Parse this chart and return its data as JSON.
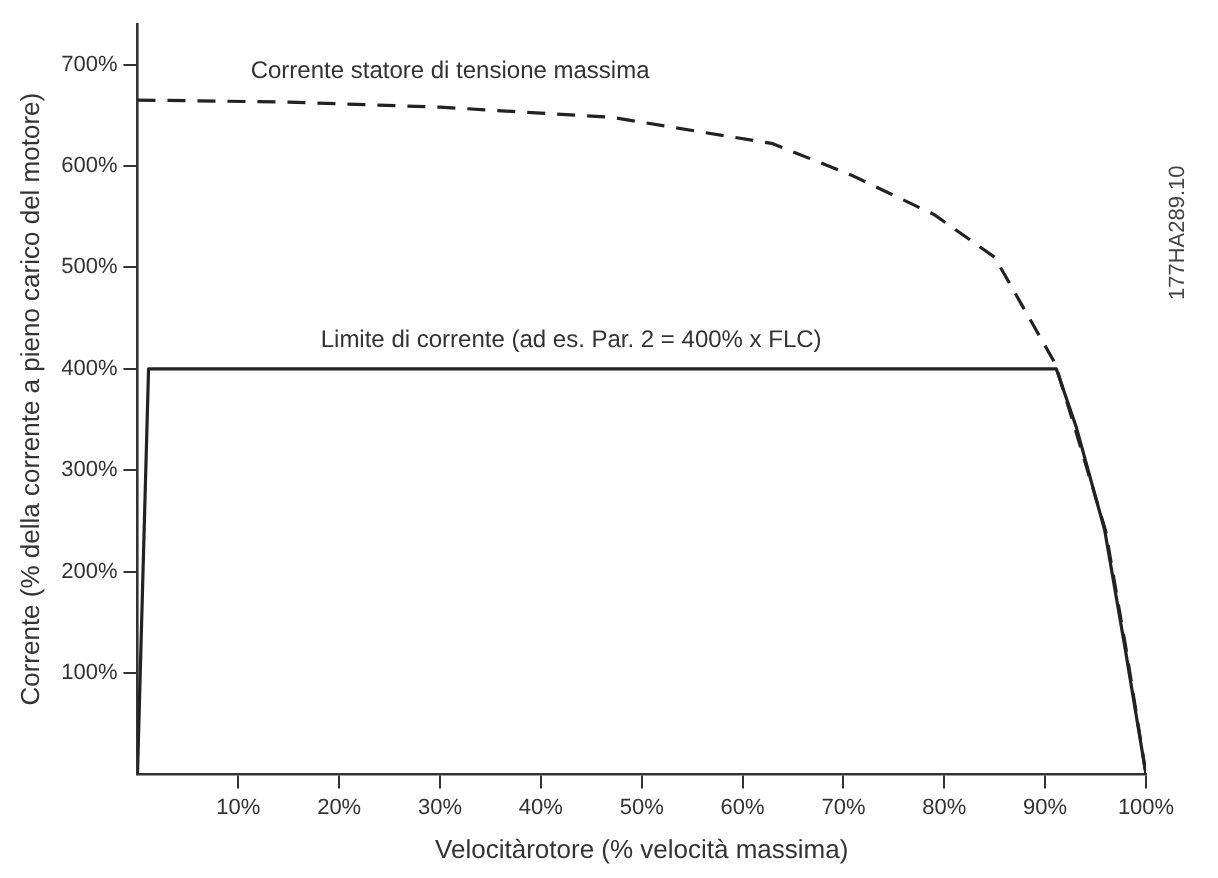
{
  "chart_data": {
    "type": "line",
    "xlabel": "Velocitàrotore (% velocità massima)",
    "ylabel": "Corrente (% della corrente a pieno carico del motore)",
    "xlim": [
      0,
      100
    ],
    "xticks": [
      {
        "value": 10,
        "label": "10%"
      },
      {
        "value": 20,
        "label": "20%"
      },
      {
        "value": 30,
        "label": "30%"
      },
      {
        "value": 40,
        "label": "40%"
      },
      {
        "value": 50,
        "label": "50%"
      },
      {
        "value": 60,
        "label": "60%"
      },
      {
        "value": 70,
        "label": "70%"
      },
      {
        "value": 80,
        "label": "80%"
      },
      {
        "value": 90,
        "label": "90%"
      },
      {
        "value": 100,
        "label": "100%"
      }
    ],
    "ylim": [
      0,
      740
    ],
    "yticks": [
      {
        "value": 100,
        "label": "100%"
      },
      {
        "value": 200,
        "label": "200%"
      },
      {
        "value": 300,
        "label": "300%"
      },
      {
        "value": 400,
        "label": "400%"
      },
      {
        "value": 500,
        "label": "500%"
      },
      {
        "value": 600,
        "label": "600%"
      },
      {
        "value": 700,
        "label": "700%"
      }
    ],
    "grid": false,
    "legend": false,
    "marker": "none",
    "series": [
      {
        "name": "Corrente statore di tensione massima",
        "color": "#222222",
        "line_style": "dashed",
        "x": [
          0,
          15,
          30,
          47,
          63,
          71,
          79,
          85,
          91,
          93,
          96,
          98,
          100
        ],
        "values": [
          665,
          663,
          658,
          648,
          622,
          590,
          552,
          510,
          405,
          340,
          240,
          125,
          0
        ]
      },
      {
        "name": "Limite di corrente (ad es. Par. 2 = 400% x FLC)",
        "color": "#222222",
        "line_style": "solid",
        "x": [
          0,
          1.1,
          91.1,
          93.1,
          95.9,
          97.9,
          100
        ],
        "values": [
          0,
          400,
          400,
          342,
          241,
          126,
          0
        ]
      }
    ],
    "annotations": [
      "177HA289.10"
    ]
  }
}
